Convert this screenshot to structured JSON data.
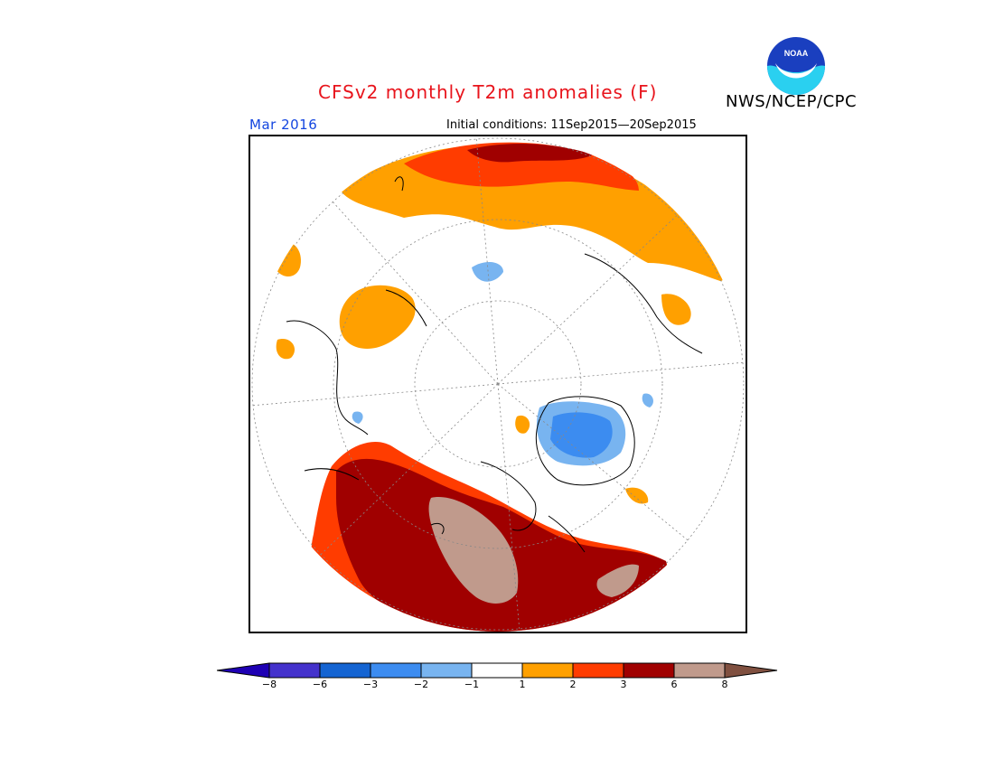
{
  "header": {
    "title": "CFSv2 monthly T2m anomalies (F)",
    "agency": "NWS/NCEP/CPC",
    "period": "Mar 2016",
    "initial_conditions": "Initial conditions: 11Sep2015—20Sep2015",
    "logo_text": "NOAA"
  },
  "colors": {
    "title": "#e8141c",
    "period": "#1446e0"
  },
  "legend": {
    "bins": [
      {
        "color": "#1e00b4",
        "label": ""
      },
      {
        "color": "#4432cc",
        "label": "−8"
      },
      {
        "color": "#1464d2",
        "label": "−6"
      },
      {
        "color": "#3c8cf0",
        "label": "−3"
      },
      {
        "color": "#78b4f0",
        "label": "−2"
      },
      {
        "color": "#ffffff",
        "label": "−1"
      },
      {
        "color": "#ffa000",
        "label": "1"
      },
      {
        "color": "#ff3c00",
        "label": "2"
      },
      {
        "color": "#a00000",
        "label": "3"
      },
      {
        "color": "#c09a8c",
        "label": "6"
      },
      {
        "color": "#805040",
        "label": "8"
      }
    ]
  }
}
